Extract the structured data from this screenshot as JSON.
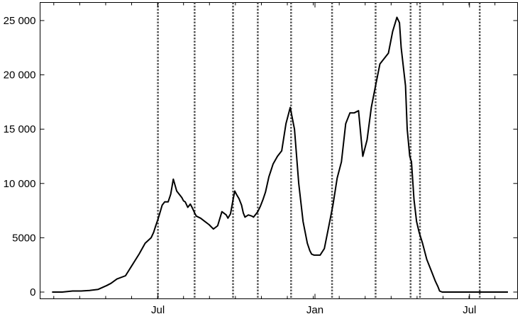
{
  "chart_data": {
    "type": "line",
    "title": "",
    "xlabel": "",
    "ylabel": "",
    "ylim": [
      0,
      26000
    ],
    "grid": false,
    "legend": "none",
    "line_color": "#000000",
    "vline_color": "#555555",
    "x_ticks": [
      {
        "x": 0,
        "label": "Jul"
      },
      {
        "x": 184,
        "label": "Jan"
      },
      {
        "x": 365,
        "label": "Jul"
      }
    ],
    "y_ticks": [
      {
        "y": 0,
        "label": "0"
      },
      {
        "y": 5000,
        "label": "5000"
      },
      {
        "y": 10000,
        "label": "10 000"
      },
      {
        "y": 15000,
        "label": "15 000"
      },
      {
        "y": 20000,
        "label": "20 000"
      },
      {
        "y": 25000,
        "label": "25 000"
      }
    ],
    "vertical_lines": [
      0,
      43,
      88,
      117,
      156,
      204,
      255,
      296,
      307,
      377
    ],
    "series": [
      {
        "x": [
          -124,
          -112,
          -100,
          -90,
          -80,
          -70,
          -60,
          -55,
          -48,
          -38,
          -30,
          -22,
          -15,
          -8,
          -5,
          -3,
          0,
          2,
          5,
          8,
          12,
          15,
          18,
          22,
          25,
          28,
          30,
          32,
          35,
          38,
          40,
          43,
          45,
          50,
          55,
          60,
          65,
          70,
          75,
          80,
          82,
          85,
          88,
          90,
          92,
          95,
          98,
          100,
          102,
          106,
          110,
          112,
          117,
          120,
          123,
          126,
          130,
          135,
          140,
          145,
          150,
          155,
          160,
          165,
          170,
          175,
          178,
          180,
          183,
          184,
          186,
          190,
          195,
          200,
          205,
          210,
          215,
          220,
          225,
          230,
          235,
          240,
          245,
          250,
          255,
          260,
          265,
          270,
          275,
          280,
          283,
          285,
          290,
          292,
          295,
          297,
          300,
          303,
          306,
          310,
          315,
          320,
          325,
          328,
          330,
          333,
          335,
          338,
          340,
          343,
          345,
          348,
          352,
          355,
          360,
          365,
          370,
          375,
          377,
          380,
          385,
          390,
          395,
          400,
          405,
          410
        ],
        "y": [
          0,
          0,
          100,
          100,
          150,
          250,
          600,
          800,
          1200,
          1500,
          2500,
          3500,
          4500,
          5000,
          5500,
          6000,
          6700,
          7200,
          8000,
          8300,
          8300,
          9000,
          10400,
          9300,
          9000,
          8700,
          8400,
          8300,
          7800,
          8100,
          7800,
          7300,
          7000,
          6800,
          6500,
          6200,
          5800,
          6100,
          7400,
          7100,
          6800,
          7200,
          8500,
          9300,
          9000,
          8600,
          8000,
          7300,
          6900,
          7100,
          7000,
          6900,
          7400,
          7900,
          8500,
          9200,
          10600,
          11800,
          12500,
          13000,
          15500,
          17000,
          15000,
          10000,
          6500,
          4500,
          3800,
          3500,
          3400,
          3400,
          3400,
          3400,
          4000,
          6000,
          8000,
          10500,
          12000,
          15500,
          16500,
          16500,
          16700,
          12500,
          14000,
          17000,
          19000,
          21000,
          21500,
          22000,
          24000,
          25300,
          24800,
          22500,
          19000,
          15000,
          12500,
          12000,
          8500,
          6500,
          5500,
          4500,
          3000,
          2000,
          1000,
          500,
          100,
          0,
          0,
          0,
          0,
          0,
          0,
          0,
          0,
          0,
          0,
          0,
          0,
          0,
          0,
          0,
          0,
          0,
          0,
          0,
          0,
          0
        ],
        "color": "#000000"
      }
    ]
  }
}
